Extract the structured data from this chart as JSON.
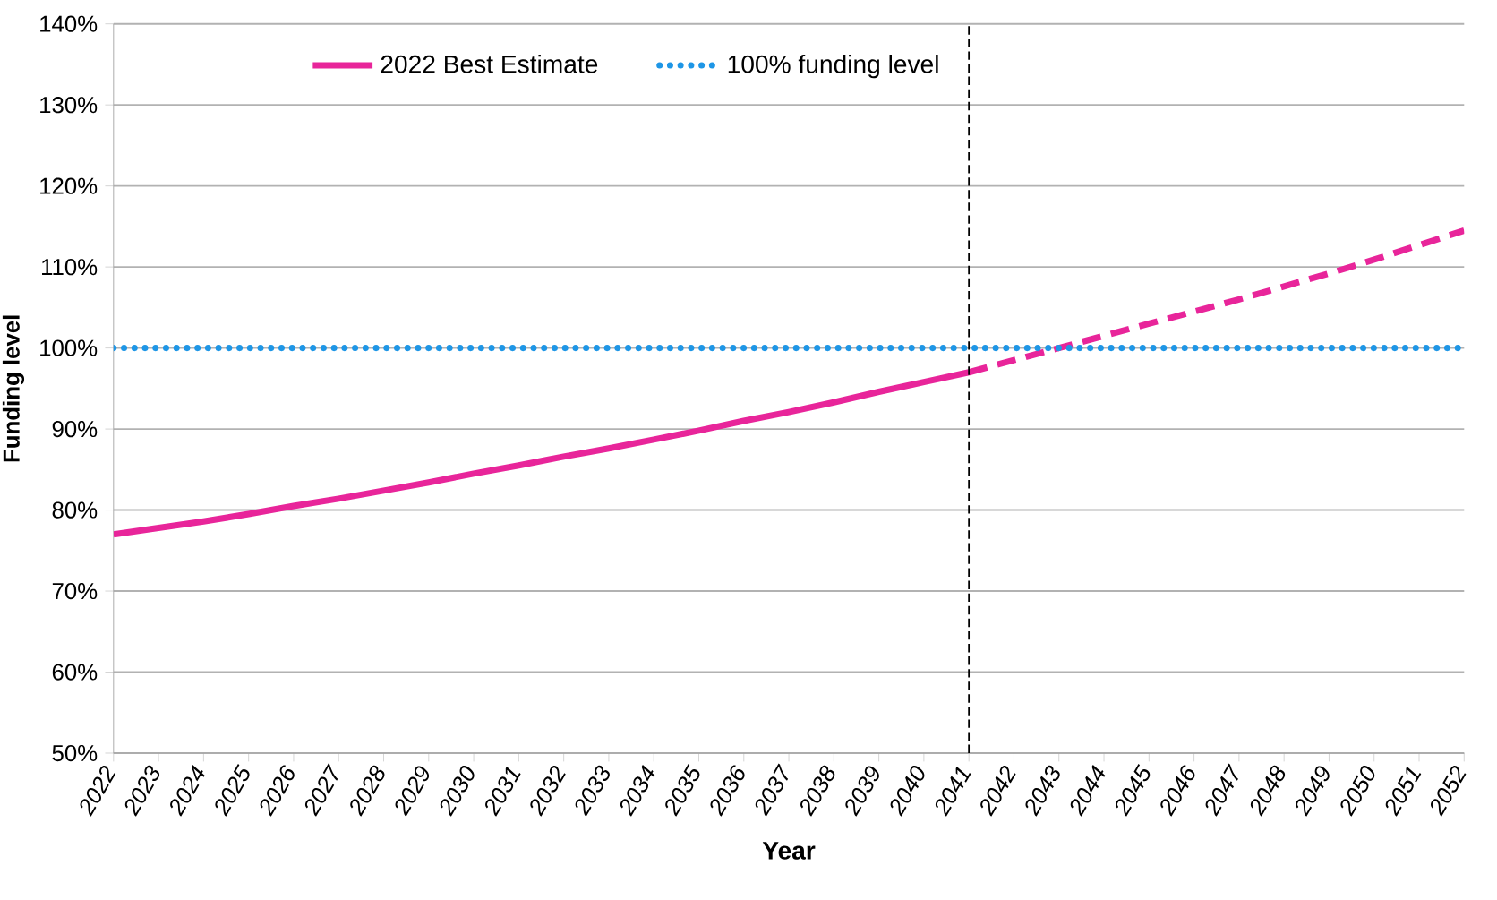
{
  "chart_data": {
    "type": "line",
    "xlabel": "Year",
    "ylabel": "Funding level",
    "x": [
      2022,
      2023,
      2024,
      2025,
      2026,
      2027,
      2028,
      2029,
      2030,
      2031,
      2032,
      2033,
      2034,
      2035,
      2036,
      2037,
      2038,
      2039,
      2040,
      2041,
      2042,
      2043,
      2044,
      2045,
      2046,
      2047,
      2048,
      2049,
      2050,
      2051,
      2052
    ],
    "series": [
      {
        "name": "2022 Best Estimate",
        "color": "#e8259a",
        "line_style": "solid",
        "values": [
          77.0,
          77.8,
          78.6,
          79.5,
          80.5,
          81.4,
          82.4,
          83.4,
          84.5,
          85.5,
          86.6,
          87.6,
          88.7,
          89.8,
          91.0,
          92.1,
          93.3,
          94.6,
          95.8,
          97.0,
          null,
          null,
          null,
          null,
          null,
          null,
          null,
          null,
          null,
          null,
          null
        ]
      },
      {
        "color": "#e8259a",
        "line_style": "dashed",
        "values": [
          null,
          null,
          null,
          null,
          null,
          null,
          null,
          null,
          null,
          null,
          null,
          null,
          null,
          null,
          null,
          null,
          null,
          null,
          null,
          97.0,
          98.5,
          100.0,
          101.5,
          103.0,
          104.5,
          106.0,
          107.6,
          109.2,
          110.9,
          112.7,
          114.5
        ]
      },
      {
        "name": "100% funding level",
        "color": "#1e96e6",
        "line_style": "dotted",
        "values": [
          100,
          100,
          100,
          100,
          100,
          100,
          100,
          100,
          100,
          100,
          100,
          100,
          100,
          100,
          100,
          100,
          100,
          100,
          100,
          100,
          100,
          100,
          100,
          100,
          100,
          100,
          100,
          100,
          100,
          100,
          100
        ]
      }
    ],
    "xlim": [
      2022,
      2052
    ],
    "xticks": [
      2022,
      2023,
      2024,
      2025,
      2026,
      2027,
      2028,
      2029,
      2030,
      2031,
      2032,
      2033,
      2034,
      2035,
      2036,
      2037,
      2038,
      2039,
      2040,
      2041,
      2042,
      2043,
      2044,
      2045,
      2046,
      2047,
      2048,
      2049,
      2050,
      2051,
      2052
    ],
    "ylim": [
      50,
      140
    ],
    "yticks": [
      {
        "value": 50,
        "label": "50%"
      },
      {
        "value": 60,
        "label": "60%"
      },
      {
        "value": 70,
        "label": "70%"
      },
      {
        "value": 80,
        "label": "80%"
      },
      {
        "value": 90,
        "label": "90%"
      },
      {
        "value": 100,
        "label": "100%"
      },
      {
        "value": 110,
        "label": "110%"
      },
      {
        "value": 120,
        "label": "120%"
      },
      {
        "value": 130,
        "label": "130%"
      },
      {
        "value": 140,
        "label": "140%"
      }
    ],
    "ref_lines": [
      {
        "axis": "x",
        "value": 2041,
        "color": "#000000",
        "line_style": "dashed"
      }
    ],
    "grid": "y",
    "legend": "top"
  }
}
